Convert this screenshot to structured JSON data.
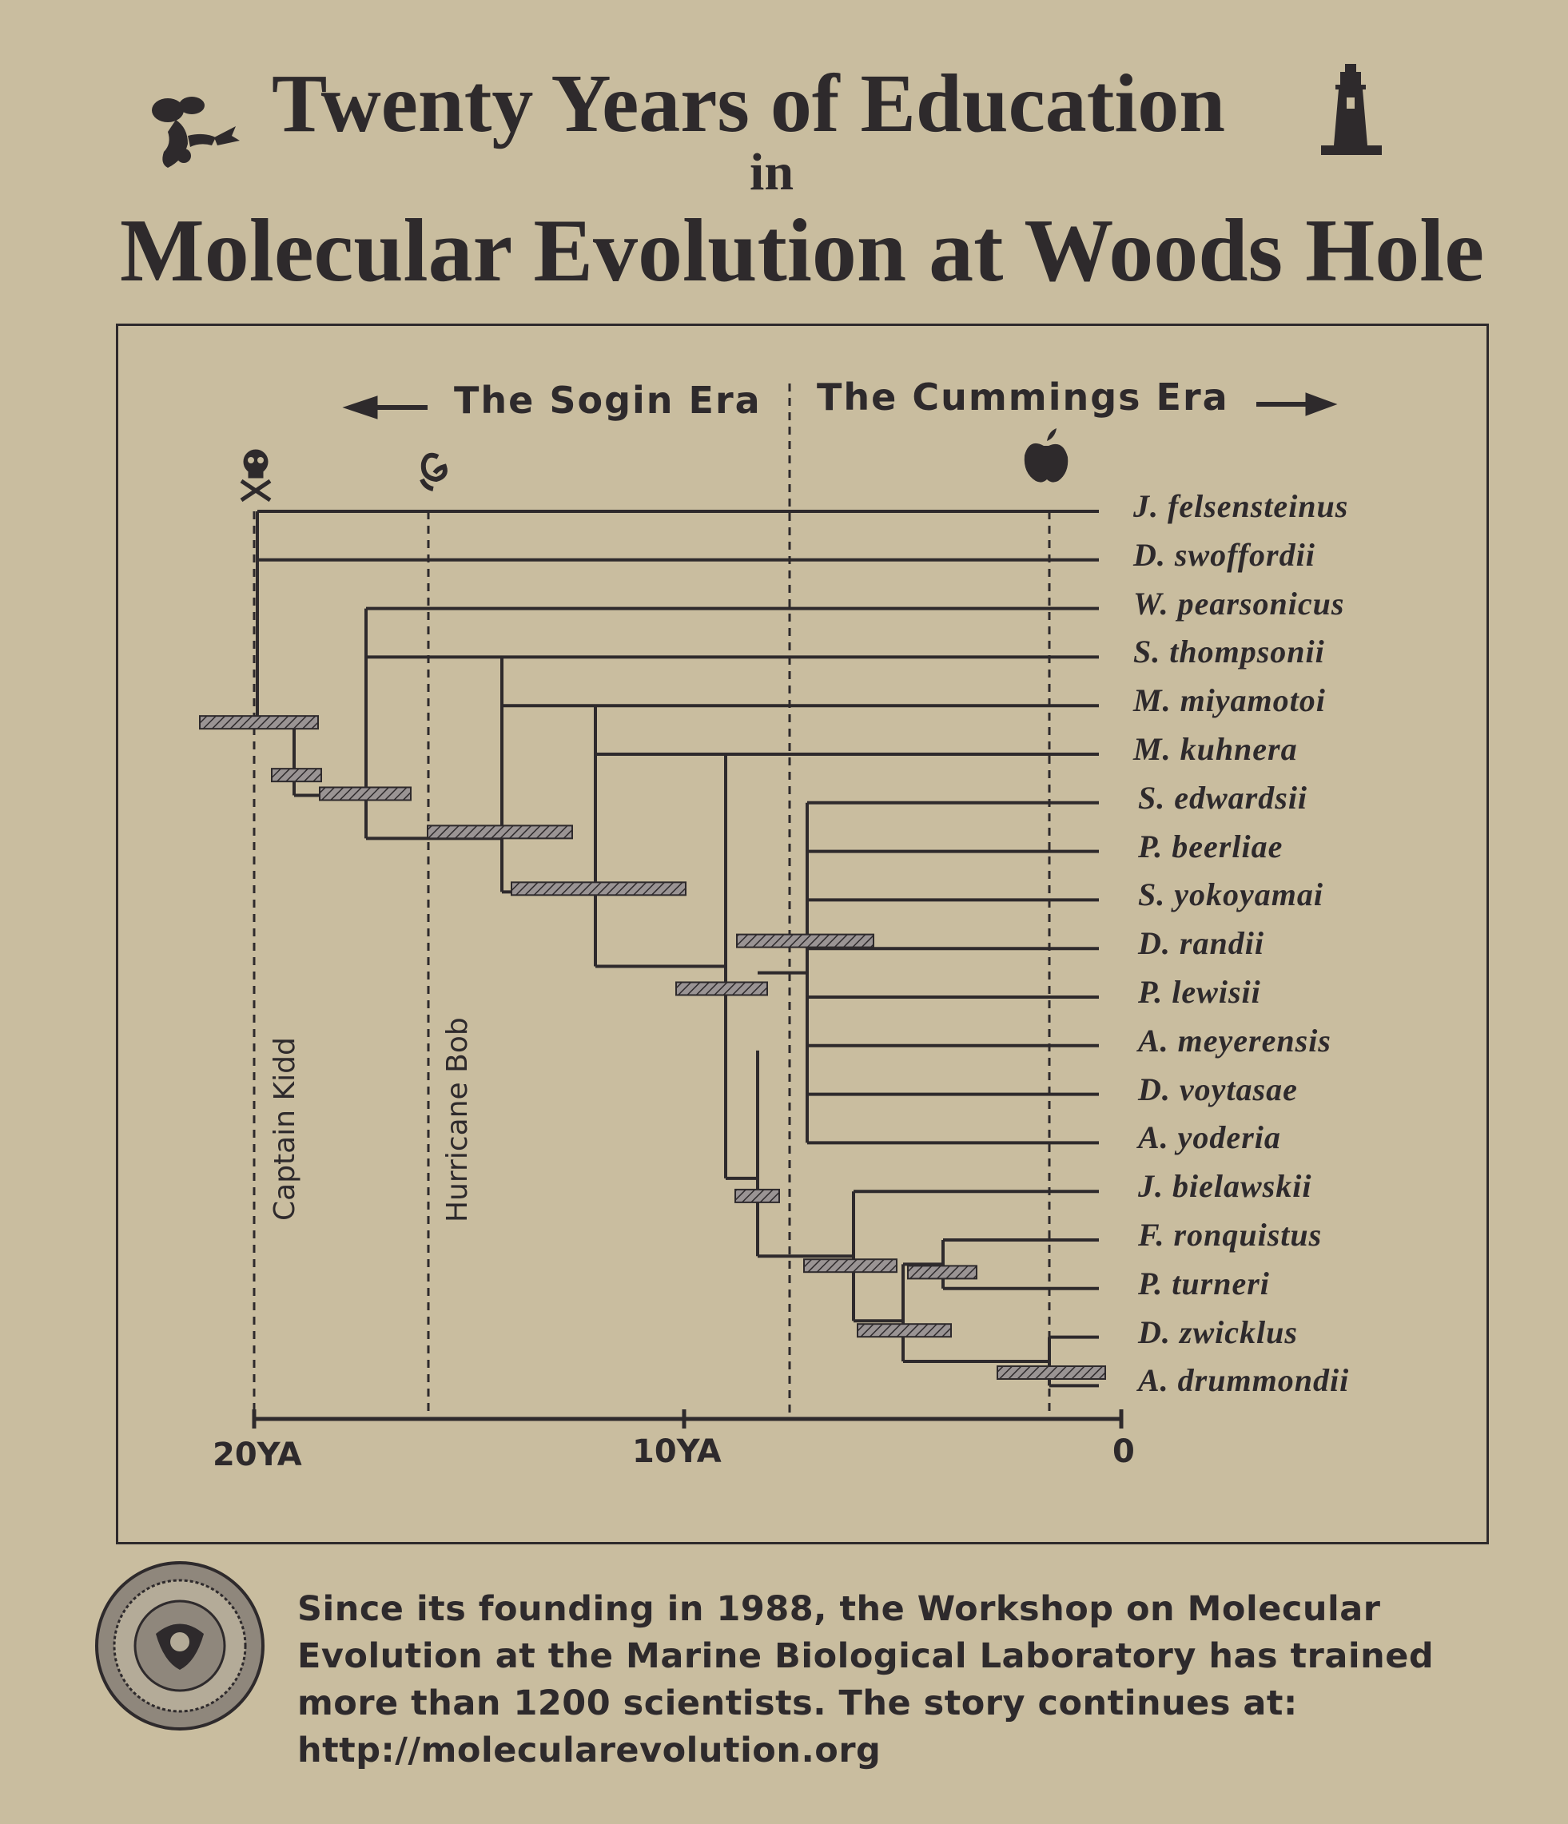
{
  "title": {
    "line1": "Twenty Years of Education",
    "line2": "in",
    "line3": "Molecular Evolution at Woods Hole"
  },
  "icons": {
    "left_title": "lobster-icon",
    "right_title": "lighthouse-icon",
    "event1": "skull-crossbones-icon",
    "event2": "hurricane-icon",
    "event3": "apple-icon",
    "seal": "mbl-seal-icon"
  },
  "eras": {
    "left": "The Sogin Era",
    "right": "The Cummings Era"
  },
  "events": {
    "captain": "Captain Kidd",
    "hurricane": "Hurricane Bob"
  },
  "axis": {
    "ticks": [
      "20YA",
      "10YA",
      "0"
    ]
  },
  "taxa": [
    "J. felsensteinus",
    "D. swoffordii",
    "W. pearsonicus",
    "S. thompsonii",
    "M. miyamotoi",
    "M. kuhnera",
    "S. edwardsii",
    "P. beerliae",
    "S. yokoyamai",
    "D. randii",
    "P. lewisii",
    "A. meyerensis",
    "D. voytasae",
    "A. yoderia",
    "J. bielawskii",
    "F. ronquistus",
    "P. turneri",
    "D. zwicklus",
    "A. drummondii"
  ],
  "footer": {
    "text": "Since its founding in 1988, the Workshop on Molecular Evolution at the Marine Biological Laboratory has trained more than 1200 scientists. The story continues at: http://molecularevolution.org"
  }
}
